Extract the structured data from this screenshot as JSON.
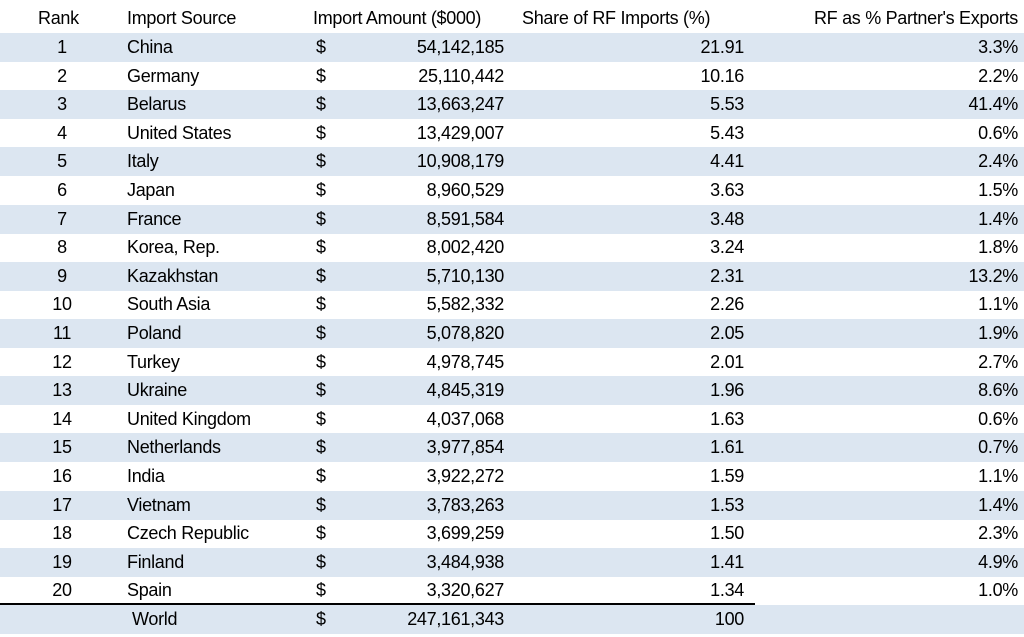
{
  "table": {
    "header": [
      "Rank",
      "Import Source",
      "Import Amount ($000)",
      "Share of RF Imports (%)",
      "RF as % Partner's Exports"
    ],
    "rows": [
      [
        "1",
        "China",
        "$",
        "54,142,185",
        "21.91",
        "3.3%"
      ],
      [
        "2",
        "Germany",
        "$",
        "25,110,442",
        "10.16",
        "2.2%"
      ],
      [
        "3",
        "Belarus",
        "$",
        "13,663,247",
        "5.53",
        "41.4%"
      ],
      [
        "4",
        "United States",
        "$",
        "13,429,007",
        "5.43",
        "0.6%"
      ],
      [
        "5",
        "Italy",
        "$",
        "10,908,179",
        "4.41",
        "2.4%"
      ],
      [
        "6",
        "Japan",
        "$",
        "8,960,529",
        "3.63",
        "1.5%"
      ],
      [
        "7",
        "France",
        "$",
        "8,591,584",
        "3.48",
        "1.4%"
      ],
      [
        "8",
        "Korea, Rep.",
        "$",
        "8,002,420",
        "3.24",
        "1.8%"
      ],
      [
        "9",
        "Kazakhstan",
        "$",
        "5,710,130",
        "2.31",
        "13.2%"
      ],
      [
        "10",
        "South Asia",
        "$",
        "5,582,332",
        "2.26",
        "1.1%"
      ],
      [
        "11",
        "Poland",
        "$",
        "5,078,820",
        "2.05",
        "1.9%"
      ],
      [
        "12",
        "Turkey",
        "$",
        "4,978,745",
        "2.01",
        "2.7%"
      ],
      [
        "13",
        "Ukraine",
        "$",
        "4,845,319",
        "1.96",
        "8.6%"
      ],
      [
        "14",
        "United Kingdom",
        "$",
        "4,037,068",
        "1.63",
        "0.6%"
      ],
      [
        "15",
        "Netherlands",
        "$",
        "3,977,854",
        "1.61",
        "0.7%"
      ],
      [
        "16",
        "India",
        "$",
        "3,922,272",
        "1.59",
        "1.1%"
      ],
      [
        "17",
        "Vietnam",
        "$",
        "3,783,263",
        "1.53",
        "1.4%"
      ],
      [
        "18",
        "Czech Republic",
        "$",
        "3,699,259",
        "1.50",
        "2.3%"
      ],
      [
        "19",
        "Finland",
        "$",
        "3,484,938",
        "1.41",
        "4.9%"
      ],
      [
        "20",
        "Spain",
        "$",
        "3,320,627",
        "1.34",
        "1.0%"
      ]
    ],
    "total": {
      "label": "World",
      "currency": "$",
      "amount": "247,161,343",
      "share": "100"
    }
  }
}
